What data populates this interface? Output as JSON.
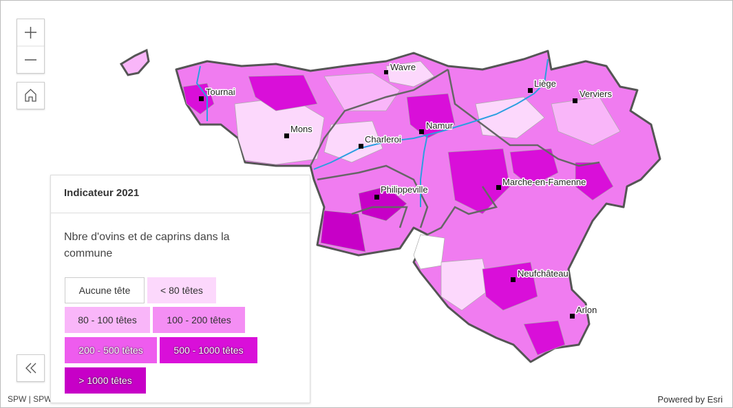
{
  "map": {
    "cities": [
      "Wavre",
      "Tournai",
      "Liège",
      "Verviers",
      "Mons",
      "Namur",
      "Charleroi",
      "Philippeville",
      "Marche-en-Famenne",
      "Neufchâteau",
      "Arlon"
    ]
  },
  "legend": {
    "title": "Indicateur 2021",
    "description": "Nbre d'ovins et de caprins dans la commune",
    "items": [
      {
        "label": "Aucune tête",
        "color": "#ffffff"
      },
      {
        "label": "< 80 têtes",
        "color": "#fcd8fc"
      },
      {
        "label": "80 - 100 têtes",
        "color": "#f9b6f9"
      },
      {
        "label": "100 - 200 têtes",
        "color": "#f48ef4"
      },
      {
        "label": "200 - 500 têtes",
        "color": "#ee5cee"
      },
      {
        "label": "500 - 1000 têtes",
        "color": "#d90fd9"
      },
      {
        "label": "> 1000 têtes",
        "color": "#c700c7"
      }
    ]
  },
  "attribution": "SPW | SPW",
  "powered_by": "Powered by Esri"
}
